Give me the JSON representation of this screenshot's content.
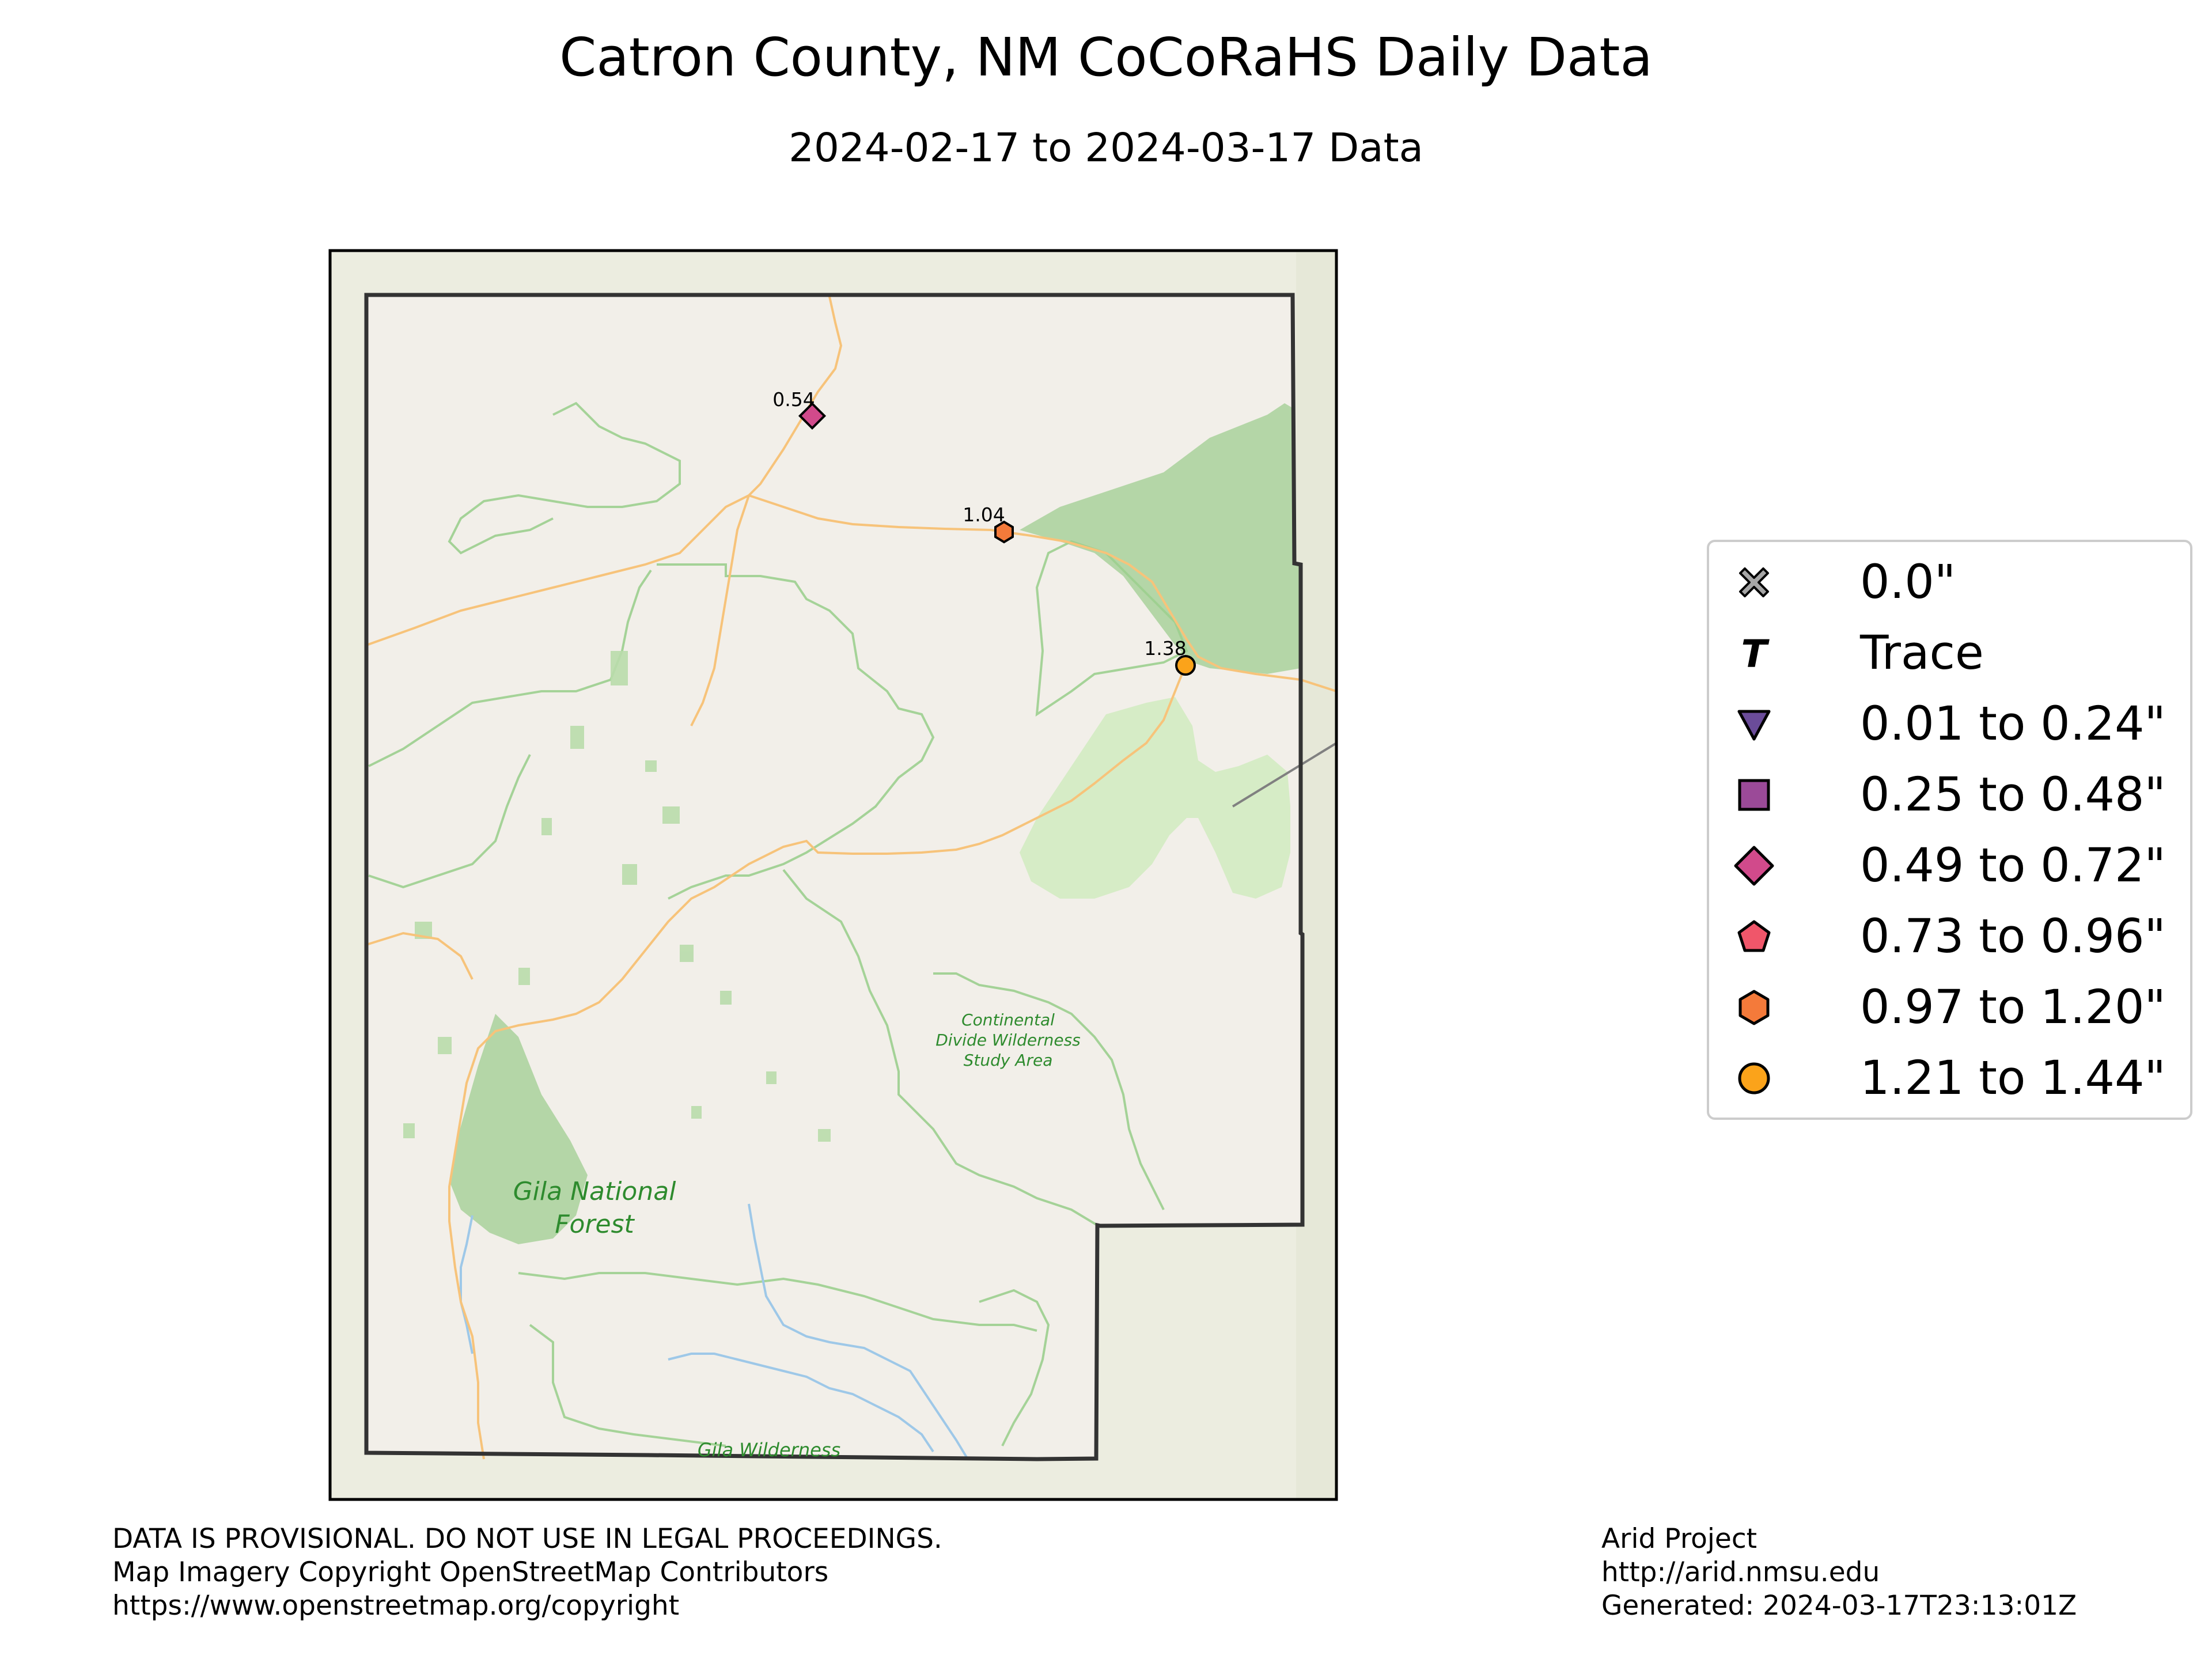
{
  "title": "Catron County, NM CoCoRaHS Daily Data",
  "subtitle": "2024-02-17 to 2024-03-17 Data",
  "map_labels": {
    "continental_line1": "Continental",
    "continental_line2": "Divide Wilderness",
    "continental_line3": "Study Area",
    "gila_nf_line1": "Gila National",
    "gila_nf_line2": "Forest",
    "gila_wilderness": "Gila Wilderness"
  },
  "stations": [
    {
      "value_label": "0.54",
      "value": 0.54,
      "marker": "diamond",
      "color": "#d14a8b"
    },
    {
      "value_label": "1.04",
      "value": 1.04,
      "marker": "hexagon",
      "color": "#f47a3a"
    },
    {
      "value_label": "1.38",
      "value": 1.38,
      "marker": "circle",
      "color": "#fba31a"
    }
  ],
  "legend": {
    "items": [
      {
        "label": "0.0\"",
        "marker": "x-icon",
        "color": "#a6a6a6"
      },
      {
        "label": "Trace",
        "marker": "trace-t-icon",
        "color": "#000000"
      },
      {
        "label": "0.01 to 0.24\"",
        "marker": "triangle-down-icon",
        "color": "#6b4c9a"
      },
      {
        "label": "0.25 to 0.48\"",
        "marker": "square-icon",
        "color": "#9b4a98"
      },
      {
        "label": "0.49 to 0.72\"",
        "marker": "diamond-icon",
        "color": "#d14a8b"
      },
      {
        "label": "0.73 to 0.96\"",
        "marker": "pentagon-icon",
        "color": "#f0566a"
      },
      {
        "label": "0.97 to 1.20\"",
        "marker": "hexagon-icon",
        "color": "#f47a3a"
      },
      {
        "label": "1.21 to 1.44\"",
        "marker": "circle-icon",
        "color": "#fba31a"
      }
    ]
  },
  "footer_left": {
    "line1": "DATA IS PROVISIONAL. DO NOT USE IN LEGAL PROCEEDINGS.",
    "line2": "Map Imagery Copyright OpenStreetMap Contributors",
    "line3": "https://www.openstreetmap.org/copyright"
  },
  "footer_right": {
    "line1": "Arid Project",
    "line2": "http://arid.nmsu.edu",
    "line3": "Generated: 2024-03-17T23:13:01Z"
  },
  "colors": {
    "map_background": "#f2efe9",
    "outside_area": "#ecede0",
    "forest": "#a9d19b",
    "boundary_green": "#9ccf8f",
    "road": "#f7c37a",
    "river": "#9ec8e8"
  }
}
